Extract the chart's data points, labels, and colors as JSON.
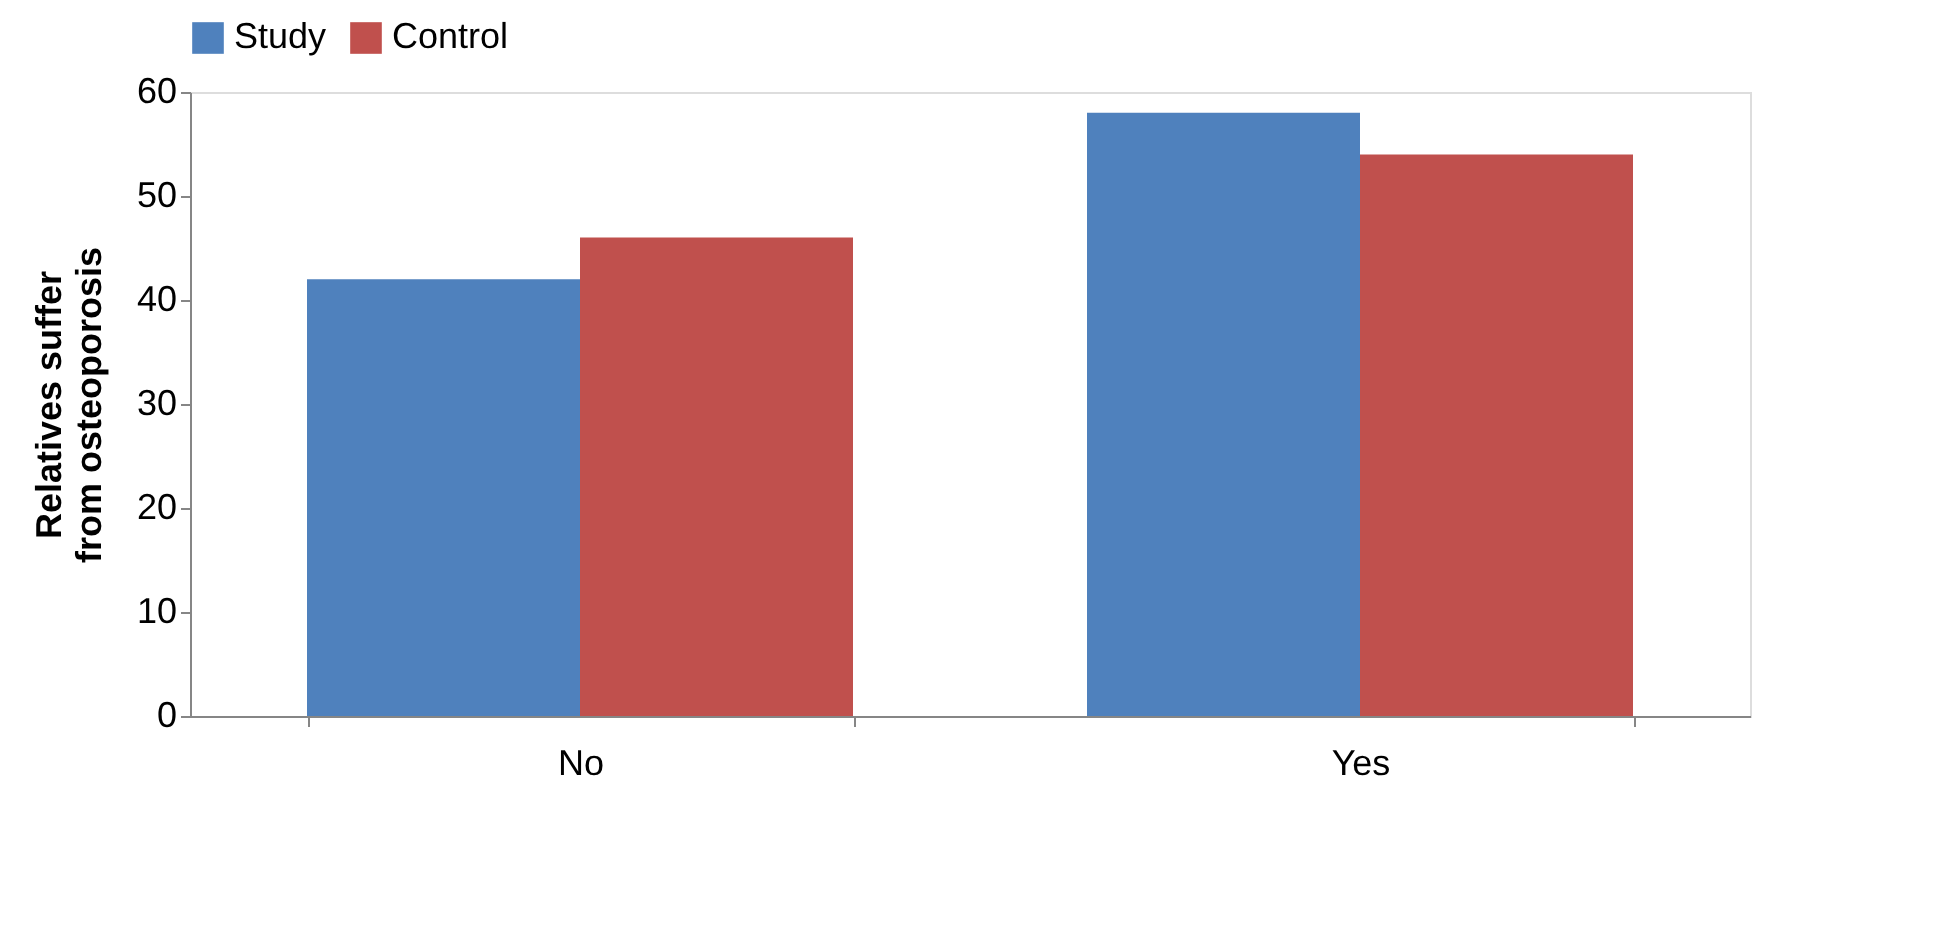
{
  "chart_data": {
    "type": "bar",
    "ylabel": "Relatives suffer from osteoporosis",
    "categories": [
      "No",
      "Yes"
    ],
    "series": [
      {
        "name": "Study",
        "color": "#4f81bd",
        "values": [
          42,
          58
        ]
      },
      {
        "name": "Control",
        "color": "#c0504d",
        "values": [
          46,
          54
        ]
      }
    ],
    "ylim": [
      0,
      60
    ],
    "yticks": [
      0,
      10,
      20,
      30,
      40,
      50,
      60
    ],
    "grid": false,
    "legend": "top"
  }
}
